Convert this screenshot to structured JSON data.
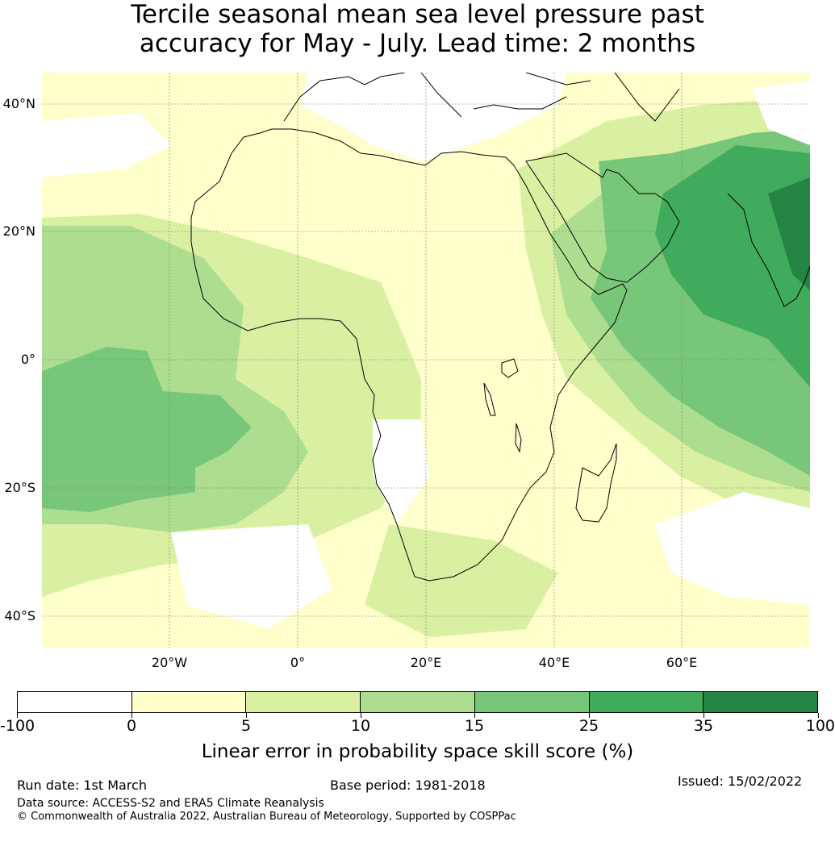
{
  "title_line1": "Tercile seasonal mean sea level pressure past",
  "title_line2": "accuracy for May - July. Lead time: 2 months",
  "map": {
    "lon_range": [
      -40,
      80
    ],
    "lat_range": [
      -45,
      45
    ],
    "lat_labels": [
      "40°N",
      "20°N",
      "0°",
      "20°S",
      "40°S"
    ],
    "lon_labels": [
      "20°W",
      "0°",
      "20°E",
      "40°E",
      "60°E"
    ],
    "grid": true
  },
  "colorbar": {
    "colors": [
      "#ffffff",
      "#ffffcc",
      "#d9f0a3",
      "#addd8e",
      "#78c679",
      "#41ab5d",
      "#238443"
    ],
    "tick_labels": [
      "-100",
      "0",
      "5",
      "10",
      "15",
      "25",
      "35",
      "100"
    ],
    "label": "Linear error in probability space skill score (%)"
  },
  "footer": {
    "run_date": "Run date: 1st March",
    "base_period": "Base period: 1981-2018",
    "issued": "Issued: 15/02/2022",
    "data_source": "Data source: ACCESS-S2 and ERA5 Climate Reanalysis",
    "copyright": "© Commonwealth of Australia 2022, Australian Bureau of Meteorology, Supported by COSPPac"
  }
}
